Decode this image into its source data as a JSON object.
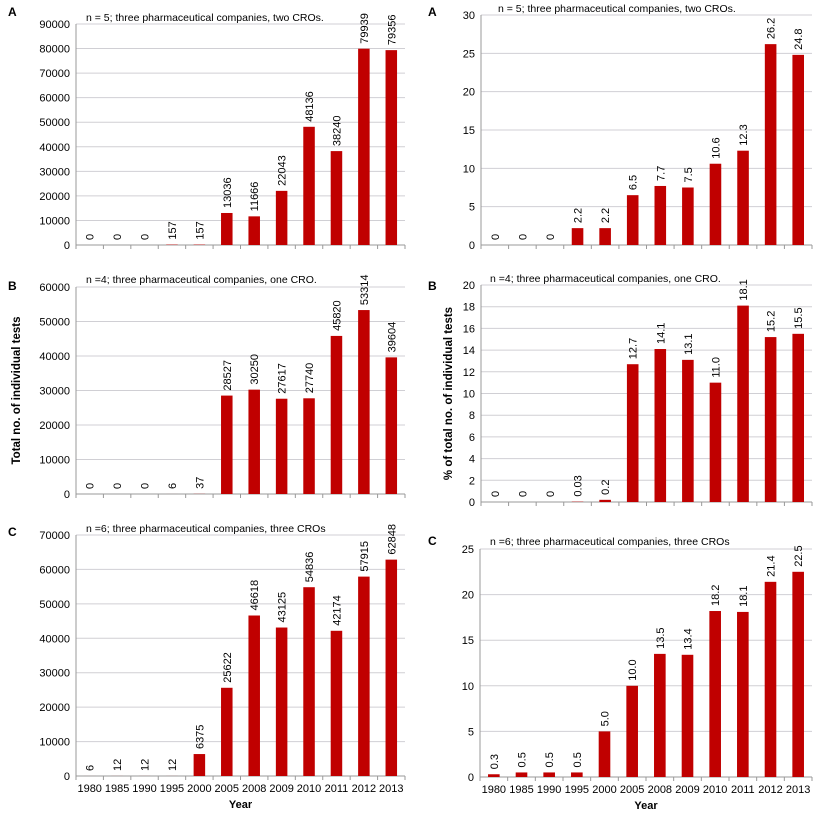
{
  "chart_data": [
    {
      "type": "bar",
      "panel_label": "A",
      "annotation": "n = 5; three pharmaceutical companies, two CROs.",
      "ylim": [
        0,
        90000
      ],
      "ystep": 10000,
      "grid": true,
      "categories": [
        "1980",
        "1985",
        "1990",
        "1995",
        "2000",
        "2005",
        "2008",
        "2009",
        "2010",
        "2011",
        "2012",
        "2013"
      ],
      "values": [
        0,
        0,
        0,
        157,
        157,
        13036,
        11666,
        22043,
        48136,
        38240,
        79939,
        79356
      ],
      "labels": [
        "0",
        "0",
        "0",
        "157",
        "157",
        "13036",
        "11666",
        "22043",
        "48136",
        "38240",
        "79939",
        "79356"
      ],
      "color": "#C00000"
    },
    {
      "type": "bar",
      "panel_label": "B",
      "annotation": "n =4; three pharmaceutical companies, one CRO.",
      "ylabel": "Total no. of individual tests",
      "ylim": [
        0,
        60000
      ],
      "ystep": 10000,
      "grid": true,
      "categories": [
        "1980",
        "1985",
        "1990",
        "1995",
        "2000",
        "2005",
        "2008",
        "2009",
        "2010",
        "2011",
        "2012",
        "2013"
      ],
      "values": [
        0,
        0,
        0,
        6,
        37,
        28527,
        30250,
        27617,
        27740,
        45820,
        53314,
        39604
      ],
      "labels": [
        "0",
        "0",
        "0",
        "6",
        "37",
        "28527",
        "30250",
        "27617",
        "27740",
        "45820",
        "53314",
        "39604"
      ],
      "color": "#C00000"
    },
    {
      "type": "bar",
      "panel_label": "C",
      "annotation": "n =6; three pharmaceutical companies, three CROs",
      "xlabel": "Year",
      "ylim": [
        0,
        70000
      ],
      "ystep": 10000,
      "grid": true,
      "categories": [
        "1980",
        "1985",
        "1990",
        "1995",
        "2000",
        "2005",
        "2008",
        "2009",
        "2010",
        "2011",
        "2012",
        "2013"
      ],
      "values": [
        6,
        12,
        12,
        12,
        6375,
        25622,
        46618,
        43125,
        54836,
        42174,
        57915,
        62848
      ],
      "labels": [
        "6",
        "12",
        "12",
        "12",
        "6375",
        "25622",
        "46618",
        "43125",
        "54836",
        "42174",
        "57915",
        "62848"
      ],
      "color": "#C00000"
    },
    {
      "type": "bar",
      "panel_label": "A",
      "annotation": "n = 5; three pharmaceutical companies, two CROs.",
      "ylim": [
        0,
        30
      ],
      "ystep": 5,
      "grid": true,
      "categories": [
        "1980",
        "1985",
        "1990",
        "1995",
        "2000",
        "2005",
        "2008",
        "2009",
        "2010",
        "2011",
        "2012",
        "2013"
      ],
      "values": [
        0,
        0,
        0,
        2.2,
        2.2,
        6.5,
        7.7,
        7.5,
        10.6,
        12.3,
        26.2,
        24.8
      ],
      "labels": [
        "0",
        "0",
        "0",
        "2.2",
        "2.2",
        "6.5",
        "7.7",
        "7.5",
        "10.6",
        "12.3",
        "26.2",
        "24.8"
      ],
      "color": "#C00000"
    },
    {
      "type": "bar",
      "panel_label": "B",
      "annotation": "n =4; three pharmaceutical companies, one CRO.",
      "ylabel": "% of total no. of individual tests",
      "ylim": [
        0,
        20
      ],
      "ystep": 2,
      "grid": true,
      "categories": [
        "1980",
        "1985",
        "1990",
        "1995",
        "2000",
        "2005",
        "2008",
        "2009",
        "2010",
        "2011",
        "2012",
        "2013"
      ],
      "values": [
        0,
        0,
        0,
        0.03,
        0.2,
        12.7,
        14.1,
        13.1,
        11.0,
        18.1,
        15.2,
        15.5
      ],
      "labels": [
        "0",
        "0",
        "0",
        "0.03",
        "0.2",
        "12.7",
        "14.1",
        "13.1",
        "11.0",
        "18.1",
        "15.2",
        "15.5"
      ],
      "color": "#C00000"
    },
    {
      "type": "bar",
      "panel_label": "C",
      "annotation": "n =6; three pharmaceutical companies, three CROs",
      "xlabel": "Year",
      "ylim": [
        0,
        25
      ],
      "ystep": 5,
      "grid": true,
      "categories": [
        "1980",
        "1985",
        "1990",
        "1995",
        "2000",
        "2005",
        "2008",
        "2009",
        "2010",
        "2011",
        "2012",
        "2013"
      ],
      "values": [
        0.3,
        0.5,
        0.5,
        0.5,
        5.0,
        10.0,
        13.5,
        13.4,
        18.2,
        18.1,
        21.4,
        22.5
      ],
      "labels": [
        "0.3",
        "0.5",
        "0.5",
        "0.5",
        "5.0",
        "10.0",
        "13.5",
        "13.4",
        "18.2",
        "18.1",
        "21.4",
        "22.5"
      ],
      "color": "#C00000"
    }
  ]
}
